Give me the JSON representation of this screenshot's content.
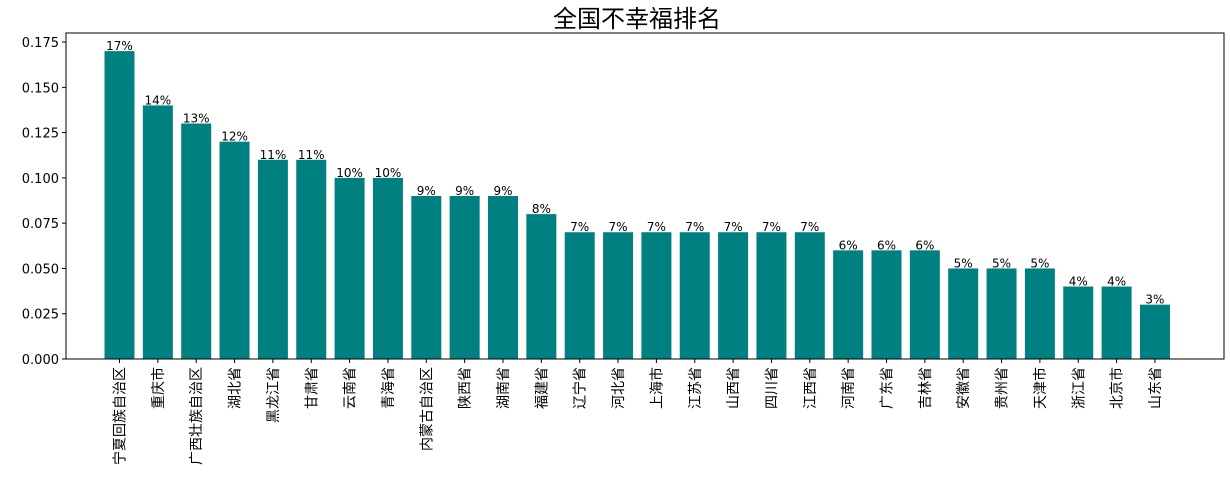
{
  "chart_data": {
    "type": "bar",
    "title": "全国不幸福排名",
    "xlabel": "",
    "ylabel": "",
    "ylim": [
      0,
      0.18
    ],
    "yticks": [
      "0.000",
      "0.025",
      "0.050",
      "0.075",
      "0.100",
      "0.125",
      "0.150",
      "0.175"
    ],
    "bar_color": "#008080",
    "grid": false,
    "categories": [
      "宁夏回族自治区",
      "重庆市",
      "广西壮族自治区",
      "湖北省",
      "黑龙江省",
      "甘肃省",
      "云南省",
      "青海省",
      "内蒙古自治区",
      "陕西省",
      "湖南省",
      "福建省",
      "辽宁省",
      "河北省",
      "上海市",
      "江苏省",
      "山西省",
      "四川省",
      "江西省",
      "河南省",
      "广东省",
      "吉林省",
      "安徽省",
      "贵州省",
      "天津市",
      "浙江省",
      "北京市",
      "山东省"
    ],
    "values": [
      0.17,
      0.14,
      0.13,
      0.12,
      0.11,
      0.11,
      0.1,
      0.1,
      0.09,
      0.09,
      0.09,
      0.08,
      0.07,
      0.07,
      0.07,
      0.07,
      0.07,
      0.07,
      0.07,
      0.06,
      0.06,
      0.06,
      0.05,
      0.05,
      0.05,
      0.04,
      0.04,
      0.03
    ],
    "data_labels": [
      "17%",
      "14%",
      "13%",
      "12%",
      "11%",
      "11%",
      "10%",
      "10%",
      "9%",
      "9%",
      "9%",
      "8%",
      "7%",
      "7%",
      "7%",
      "7%",
      "7%",
      "7%",
      "7%",
      "6%",
      "6%",
      "6%",
      "5%",
      "5%",
      "5%",
      "4%",
      "4%",
      "3%"
    ]
  }
}
